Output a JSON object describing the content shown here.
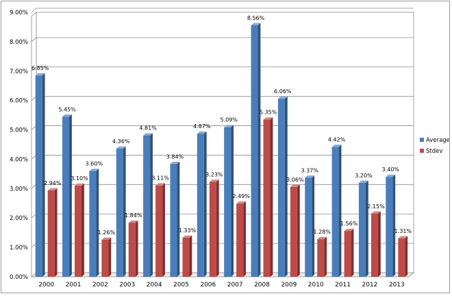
{
  "chart_data": {
    "type": "bar",
    "title": "",
    "xlabel": "",
    "ylabel": "",
    "ylim": [
      0,
      9
    ],
    "y_tick_labels": [
      "0.00%",
      "1.00%",
      "2.00%",
      "3.00%",
      "4.00%",
      "5.00%",
      "6.00%",
      "7.00%",
      "8.00%",
      "9.00%"
    ],
    "y_tick_values": [
      0,
      1,
      2,
      3,
      4,
      5,
      6,
      7,
      8,
      9
    ],
    "grid": "horizontal",
    "legend_position": "right",
    "style": "3d-clustered-column",
    "categories": [
      "2000",
      "2001",
      "2002",
      "2003",
      "2004",
      "2005",
      "2006",
      "2007",
      "2008",
      "2009",
      "2010",
      "2011",
      "2012",
      "2013"
    ],
    "series": [
      {
        "name": "Average",
        "color": "#4A7EBB",
        "values": [
          6.85,
          5.45,
          3.6,
          4.36,
          4.81,
          3.84,
          4.87,
          5.09,
          8.56,
          6.06,
          3.37,
          4.42,
          3.2,
          3.4
        ],
        "labels": [
          "6.85%",
          "5.45%",
          "3.60%",
          "4.36%",
          "4.81%",
          "3.84%",
          "4.87%",
          "5.09%",
          "8.56%",
          "6.06%",
          "3.37%",
          "4.42%",
          "3.20%",
          "3.40%"
        ]
      },
      {
        "name": "Stdev",
        "color": "#BE4B48",
        "values": [
          2.94,
          3.1,
          1.26,
          1.84,
          3.11,
          1.33,
          3.23,
          2.49,
          5.35,
          3.06,
          1.28,
          1.56,
          2.15,
          1.31
        ],
        "labels": [
          "2.94%",
          "3.10%",
          "1.26%",
          "1.84%",
          "3.11%",
          "1.33%",
          "3.23%",
          "2.49%",
          "5.35%",
          "3.06%",
          "1.28%",
          "1.56%",
          "2.15%",
          "1.31%"
        ]
      }
    ]
  }
}
